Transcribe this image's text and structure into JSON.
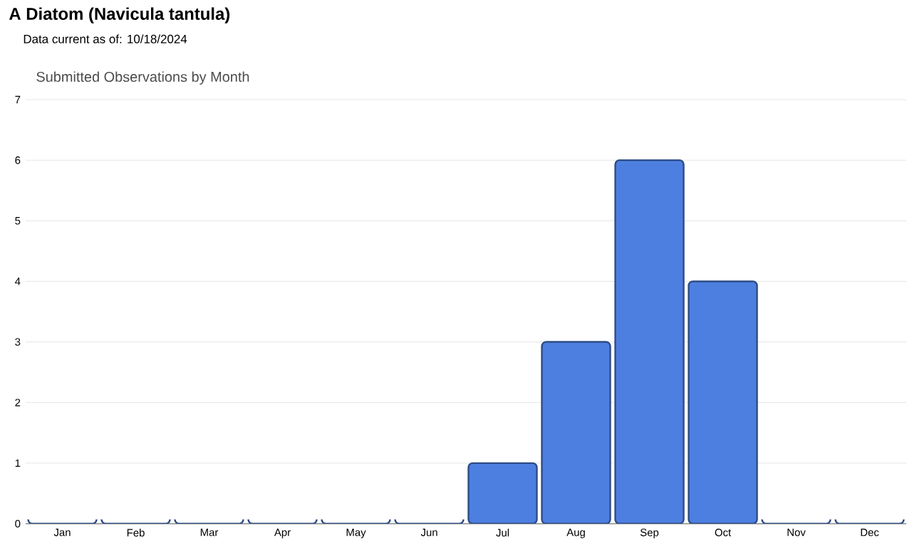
{
  "chart_data": {
    "type": "bar",
    "title": "A Diatom   (Navicula tantula)",
    "subtitle": "Data current as of: 10/18/2024",
    "annotations": [
      "Submitted Observations by Month"
    ],
    "categories": [
      "Jan",
      "Feb",
      "Mar",
      "Apr",
      "May",
      "Jun",
      "Jul",
      "Aug",
      "Sep",
      "Oct",
      "Nov",
      "Dec"
    ],
    "values": [
      0,
      0,
      0,
      0,
      0,
      0,
      1,
      3,
      6,
      4,
      0,
      0
    ],
    "color": "#4d7fe0",
    "ylim": [
      0,
      7
    ],
    "yticks": [
      0,
      1,
      2,
      3,
      4,
      5,
      6,
      7
    ],
    "grid": "y"
  }
}
